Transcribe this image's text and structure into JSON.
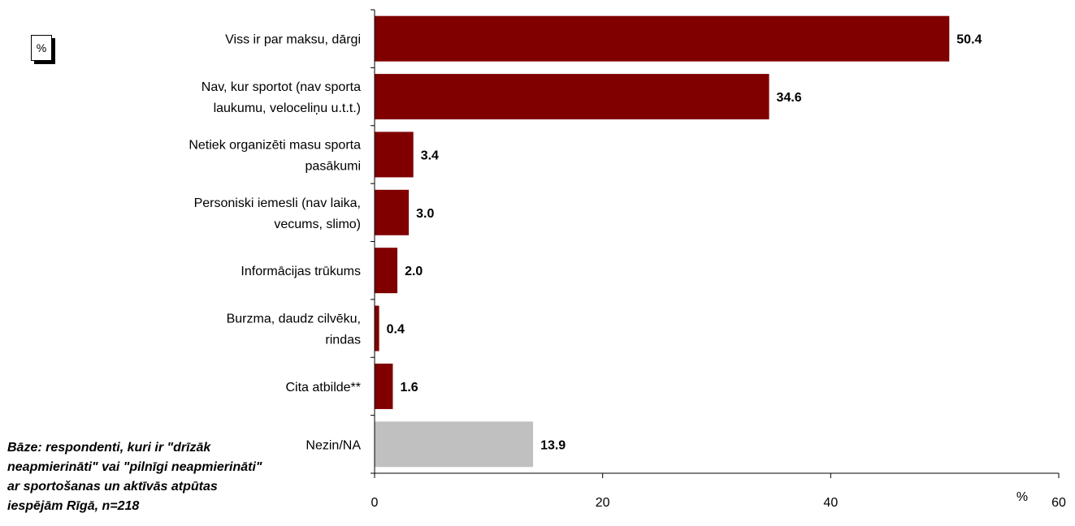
{
  "unit_label": "%",
  "base_note": "Bāze: respondenti, kuri ir \"drīzāk\nneapmierināti\" vai \"pilnīgi neapmierināti\"\nar sportošanas un aktīvās atpūtas\niespējām Rīgā, n=218",
  "colors": {
    "main_bar": "#800000",
    "na_bar": "#c0c0c0",
    "axis": "#000000"
  },
  "chart_data": {
    "type": "bar",
    "orientation": "horizontal",
    "title": "",
    "xlabel": "%",
    "ylabel": "",
    "xlim": [
      0,
      60
    ],
    "x_ticks": [
      0,
      20,
      40,
      60
    ],
    "grid": false,
    "legend": "none",
    "categories": [
      [
        "Viss ir par maksu, dārgi"
      ],
      [
        "Nav, kur sportot (nav sporta",
        "laukumu, veloceliņu u.t.t.)"
      ],
      [
        "Netiek organizēti masu sporta",
        "pasākumi"
      ],
      [
        "Personiski iemesli (nav laika,",
        "vecums, slimo)"
      ],
      [
        "Informācijas trūkums"
      ],
      [
        "Burzma, daudz cilvēku,",
        "rindas"
      ],
      [
        "Cita atbilde**"
      ],
      [
        "Nezin/NA"
      ]
    ],
    "values": [
      50.4,
      34.6,
      3.4,
      3.0,
      2.0,
      0.4,
      1.6,
      13.9
    ],
    "value_labels": [
      "50.4",
      "34.6",
      "3.4",
      "3.0",
      "2.0",
      "0.4",
      "1.6",
      "13.9"
    ],
    "bar_colors": [
      "main_bar",
      "main_bar",
      "main_bar",
      "main_bar",
      "main_bar",
      "main_bar",
      "main_bar",
      "na_bar"
    ]
  }
}
